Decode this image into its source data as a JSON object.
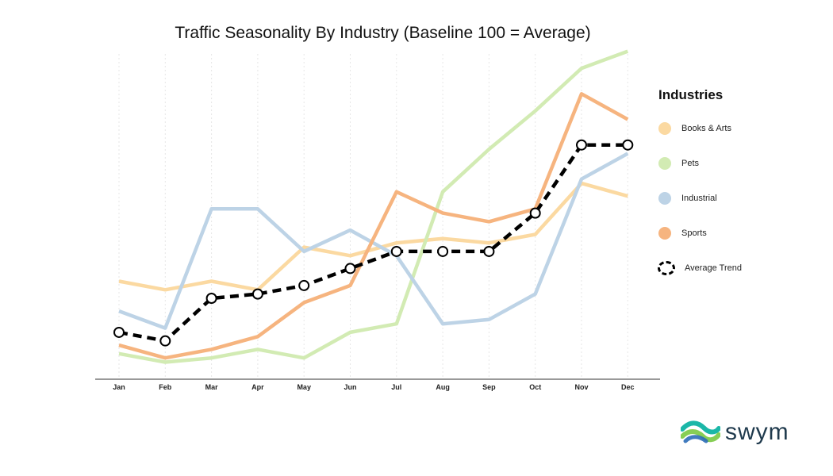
{
  "chart_data": {
    "type": "line",
    "title": "Traffic Seasonality By Industry (Baseline 100 = Average)",
    "xlabel": "",
    "ylabel": "",
    "categories": [
      "Jan",
      "Feb",
      "Mar",
      "Apr",
      "May",
      "Jun",
      "Jul",
      "Aug",
      "Sep",
      "Oct",
      "Nov",
      "Dec"
    ],
    "ylim": [
      72,
      148
    ],
    "grid": "vertical dotted",
    "legend_title": "Industries",
    "legend_position": "right",
    "series": [
      {
        "name": "Books & Arts",
        "color": "#fbd9a1",
        "values": [
          95,
          93,
          95,
          93,
          103,
          101,
          104,
          105,
          104,
          106,
          118,
          115
        ]
      },
      {
        "name": "Pets",
        "color": "#d2ebb3",
        "values": [
          78,
          76,
          77,
          79,
          77,
          83,
          85,
          116,
          126,
          135,
          145,
          149
        ]
      },
      {
        "name": "Industrial",
        "color": "#bdd3e6",
        "values": [
          88,
          84,
          112,
          112,
          102,
          107,
          101,
          85,
          86,
          92,
          119,
          125
        ]
      },
      {
        "name": "Sports",
        "color": "#f6b47f",
        "values": [
          80,
          77,
          79,
          82,
          90,
          94,
          116,
          111,
          109,
          112,
          139,
          133
        ]
      },
      {
        "name": "Average Trend",
        "color": "#000000",
        "values": [
          83,
          81,
          91,
          92,
          94,
          98,
          102,
          102,
          102,
          111,
          127,
          127
        ]
      }
    ]
  },
  "logo": {
    "text": "swym",
    "colors": [
      "#1bb7a8",
      "#7ac943",
      "#2c6db8"
    ]
  }
}
